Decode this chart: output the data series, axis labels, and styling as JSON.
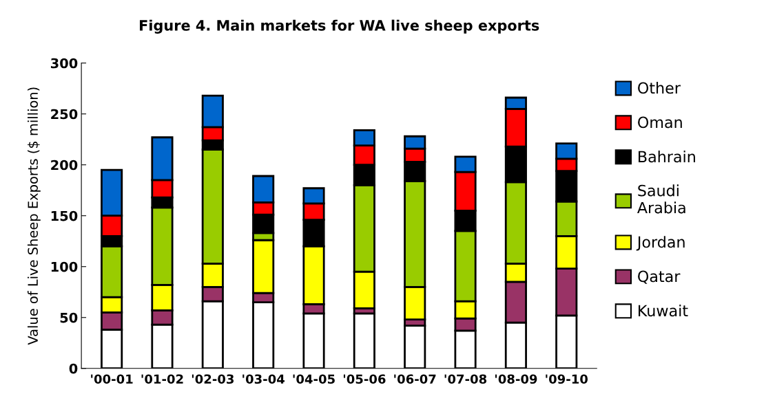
{
  "chart_data": {
    "type": "bar",
    "title": "Figure 4. Main markets for WA live sheep exports",
    "ylabel": "Value of Live Sheep Exports ($ million)",
    "categories": [
      "'00-01",
      "'01-02",
      "'02-03",
      "'03-04",
      "'04-05",
      "'05-06",
      "'06-07",
      "'07-08",
      "'08-09",
      "'09-10"
    ],
    "stacked": true,
    "ylim": [
      0,
      300
    ],
    "yticks": [
      0,
      50,
      100,
      150,
      200,
      250,
      300
    ],
    "grid": false,
    "legend": "right",
    "series": [
      {
        "name": "Kuwait",
        "color": "#ffffff",
        "values": [
          38,
          43,
          66,
          65,
          54,
          54,
          42,
          37,
          45,
          52
        ]
      },
      {
        "name": "Qatar",
        "color": "#993366",
        "values": [
          17,
          14,
          14,
          9,
          9,
          5,
          6,
          12,
          40,
          46
        ]
      },
      {
        "name": "Jordan",
        "color": "#ffff00",
        "values": [
          15,
          25,
          23,
          52,
          57,
          36,
          32,
          17,
          18,
          32
        ]
      },
      {
        "name": "Saudi\nArabia",
        "color": "#99cc00",
        "values": [
          50,
          76,
          112,
          7,
          null,
          85,
          104,
          69,
          80,
          34
        ]
      },
      {
        "name": "Bahrain",
        "color": "#000000",
        "values": [
          10,
          10,
          9,
          18,
          26,
          20,
          19,
          20,
          35,
          30
        ]
      },
      {
        "name": "Oman",
        "color": "#ff0000",
        "values": [
          20,
          17,
          13,
          12,
          16,
          19,
          13,
          38,
          37,
          12
        ]
      },
      {
        "name": "Other",
        "color": "#0066cc",
        "values": [
          45,
          42,
          31,
          26,
          15,
          15,
          12,
          15,
          11,
          15
        ]
      }
    ]
  }
}
